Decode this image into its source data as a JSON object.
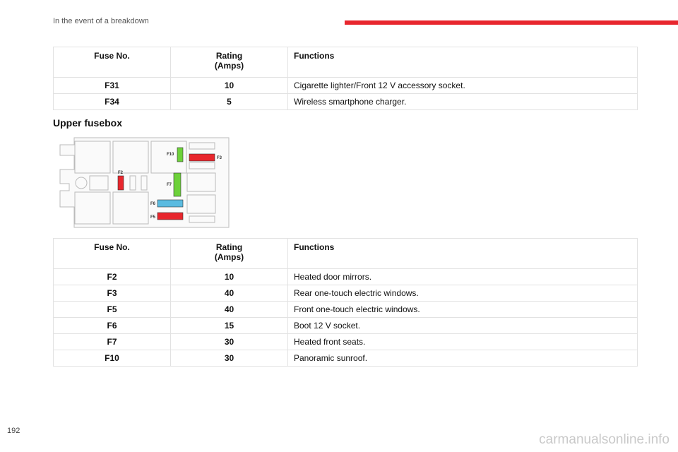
{
  "header": {
    "section": "In the event of a breakdown"
  },
  "tables": [
    {
      "columns": {
        "fuse": "Fuse No.",
        "rating": [
          "Rating",
          "(Amps)"
        ],
        "functions": "Functions"
      },
      "rows": [
        [
          "F31",
          "10",
          "Cigarette lighter/Front 12 V accessory socket."
        ],
        [
          "F34",
          "5",
          "Wireless smartphone charger."
        ]
      ]
    },
    {
      "columns": {
        "fuse": "Fuse No.",
        "rating": [
          "Rating",
          "(Amps)"
        ],
        "functions": "Functions"
      },
      "rows": [
        [
          "F2",
          "10",
          "Heated door mirrors."
        ],
        [
          "F3",
          "40",
          "Rear one-touch electric windows."
        ],
        [
          "F5",
          "40",
          "Front one-touch electric windows."
        ],
        [
          "F6",
          "15",
          "Boot 12 V socket."
        ],
        [
          "F7",
          "30",
          "Heated front seats."
        ],
        [
          "F10",
          "30",
          "Panoramic sunroof."
        ]
      ]
    }
  ],
  "section_heading": "Upper fusebox",
  "diagram": {
    "labels": [
      "F10",
      "F3",
      "F2",
      "F7",
      "F6",
      "F5"
    ]
  },
  "footer": {
    "page_number": "192",
    "watermark": "carmanualsonline.info"
  }
}
